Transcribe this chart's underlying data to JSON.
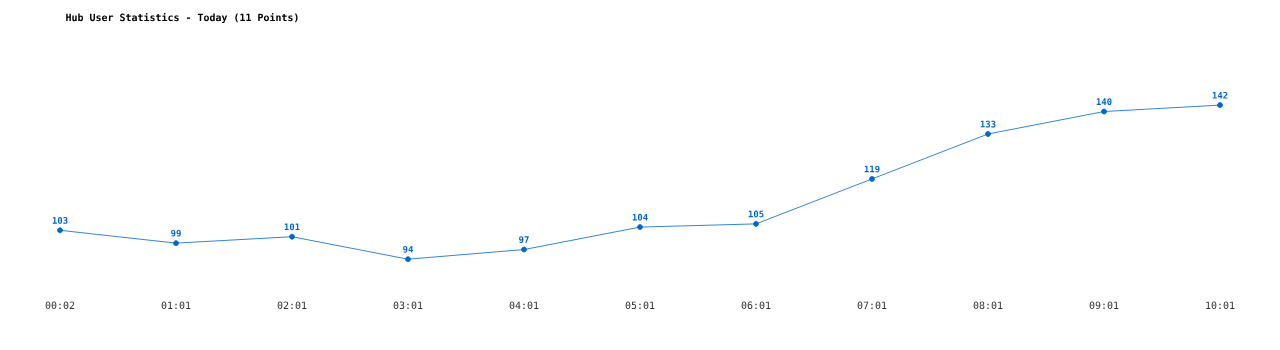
{
  "chart_data": {
    "type": "line",
    "title": "Hub User Statistics - Today (11 Points)",
    "categories": [
      "00:02",
      "01:01",
      "02:01",
      "03:01",
      "04:01",
      "05:01",
      "06:01",
      "07:01",
      "08:01",
      "09:01",
      "10:01"
    ],
    "values": [
      103,
      99,
      101,
      94,
      97,
      104,
      105,
      119,
      133,
      140,
      142
    ],
    "color": "#0066cc",
    "data_labels": true,
    "marker": "circle"
  }
}
